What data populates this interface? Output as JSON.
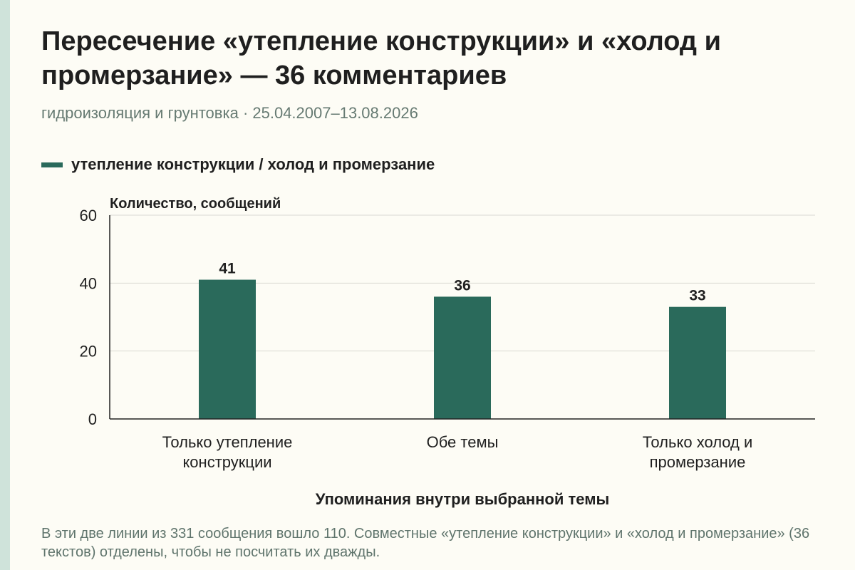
{
  "header": {
    "title": "Пересечение «утепление конструкции» и «холод и промерзание» — 36 комментариев",
    "subtitle": "гидроизоляция и грунтовка · 25.04.2007–13.08.2026"
  },
  "legend": {
    "label": "утепление конструкции / холод и промерзание",
    "color": "#2a6a5b"
  },
  "footnote": "В эти две линии из 331 сообщения вошло 110. Совместные «утепление конструкции» и «холод и промерзание» (36 текстов) отделены, чтобы не посчитать их дважды.",
  "chart_data": {
    "type": "bar",
    "categories": [
      [
        "Только утепление",
        "конструкции"
      ],
      [
        "Обе темы"
      ],
      [
        "Только холод и",
        "промерзание"
      ]
    ],
    "series": [
      {
        "name": "утепление конструкции / холод и промерзание",
        "values": [
          41,
          36,
          33
        ],
        "color": "#2a6a5b"
      }
    ],
    "ylabel": "Количество, сообщений",
    "xlabel": "Упоминания внутри выбранной темы",
    "ylim": [
      0,
      60
    ],
    "yticks": [
      0,
      20,
      40,
      60
    ],
    "grid": true,
    "legend_position": "top-left"
  }
}
